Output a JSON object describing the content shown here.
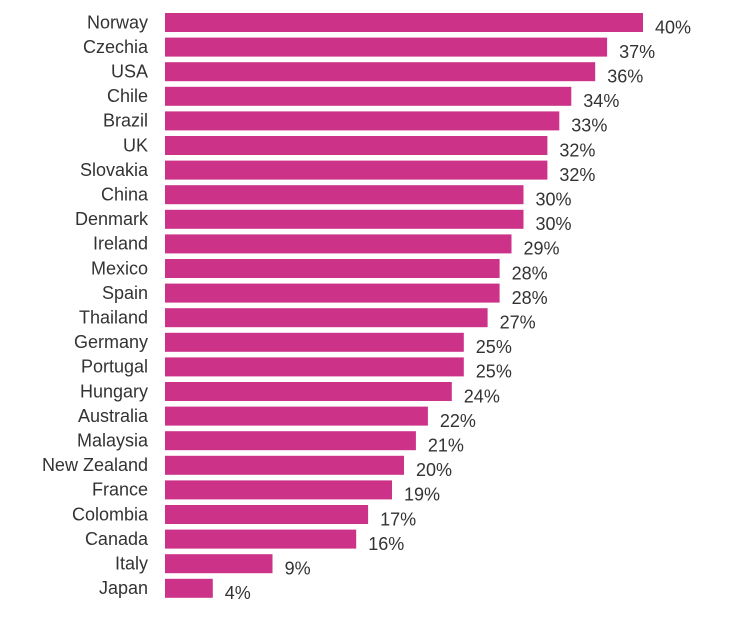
{
  "chart_data": {
    "type": "bar",
    "orientation": "horizontal",
    "categories": [
      "Norway",
      "Czechia",
      "USA",
      "Chile",
      "Brazil",
      "UK",
      "Slovakia",
      "China",
      "Denmark",
      "Ireland",
      "Mexico",
      "Spain",
      "Thailand",
      "Germany",
      "Portugal",
      "Hungary",
      "Australia",
      "Malaysia",
      "New Zealand",
      "France",
      "Colombia",
      "Canada",
      "Italy",
      "Japan"
    ],
    "values": [
      40,
      37,
      36,
      34,
      33,
      32,
      32,
      30,
      30,
      29,
      28,
      28,
      27,
      25,
      25,
      24,
      22,
      21,
      20,
      19,
      17,
      16,
      9,
      4
    ],
    "value_labels": [
      "40%",
      "37%",
      "36%",
      "34%",
      "33%",
      "32%",
      "32%",
      "30%",
      "30%",
      "29%",
      "28%",
      "28%",
      "27%",
      "25%",
      "25%",
      "24%",
      "22%",
      "21%",
      "20%",
      "19%",
      "17%",
      "16%",
      "9%",
      "4%"
    ],
    "unit": "%",
    "bar_color": "#cc3288",
    "grid": false,
    "legend": "none"
  }
}
